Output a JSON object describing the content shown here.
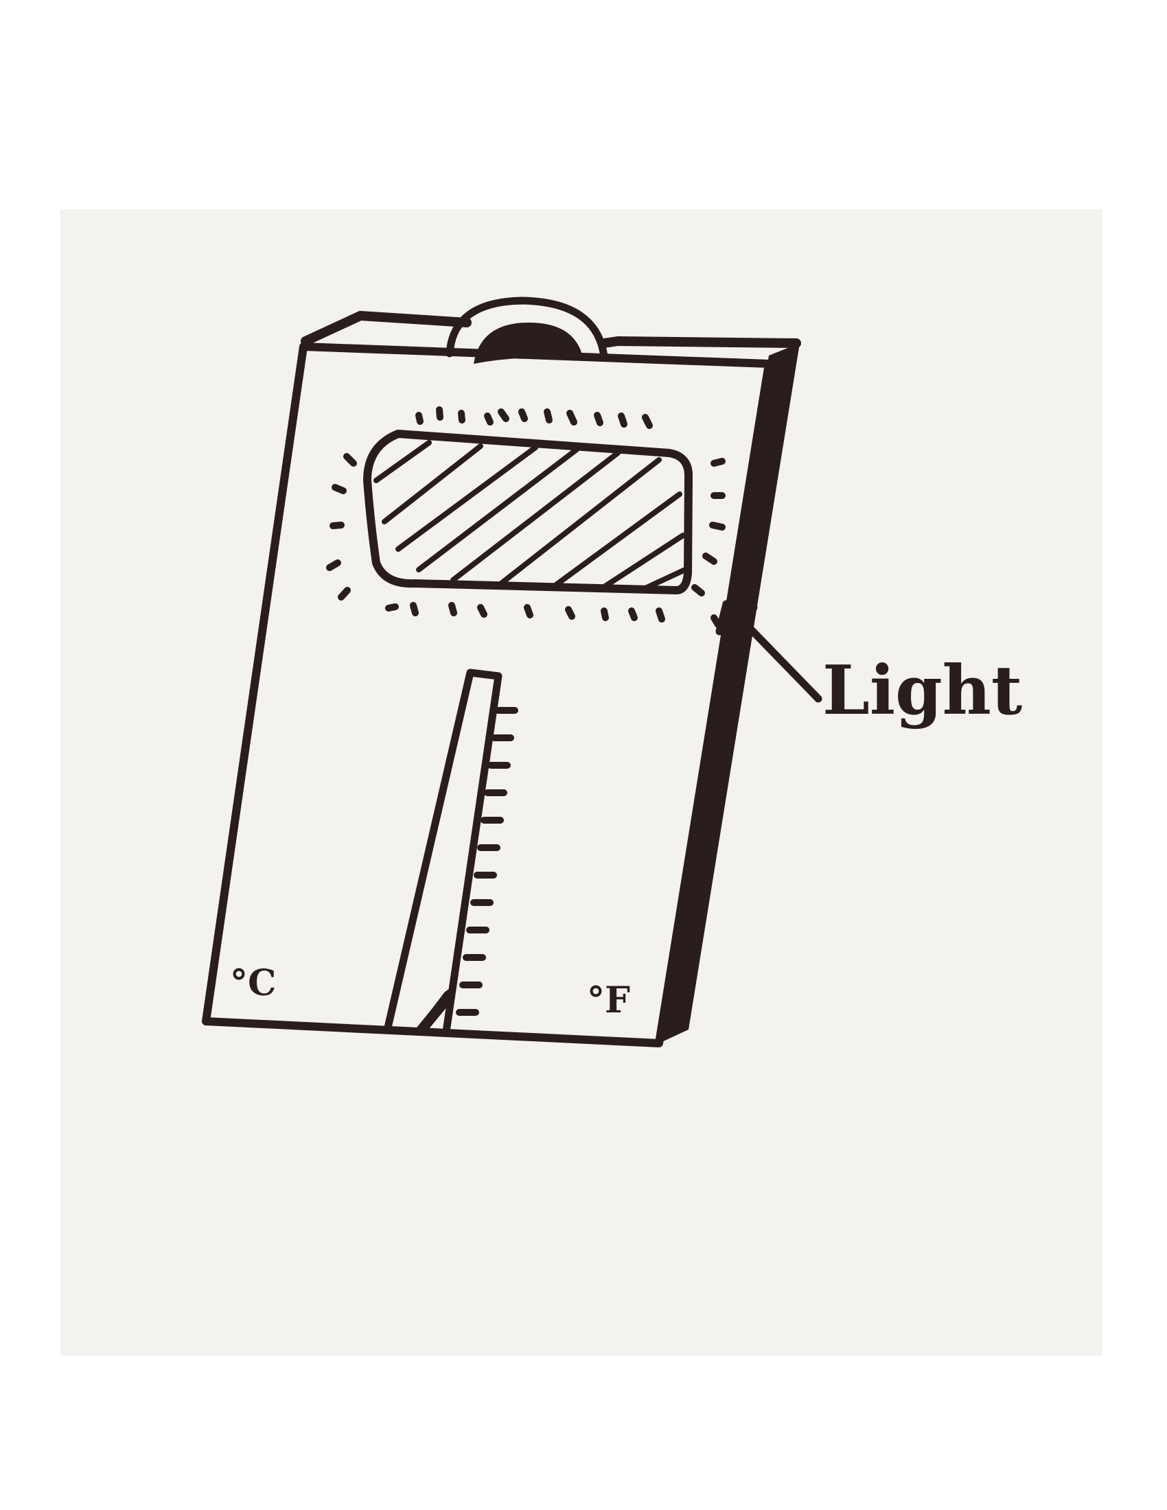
{
  "diagram": {
    "callout_label": "Light",
    "celsius_label": "°C",
    "fahrenheit_label": "°F",
    "ink_color": "#2a1d1d",
    "paper_color": "#f3f2ee",
    "background_color": "#ffffff"
  }
}
